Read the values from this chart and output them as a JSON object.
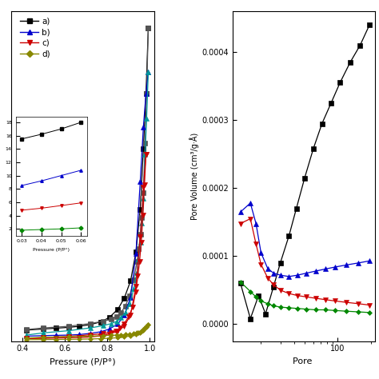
{
  "left_plot": {
    "xlabel": "Pressure (P/P°)",
    "xlim": [
      0.35,
      1.02
    ],
    "xticks": [
      0.4,
      0.6,
      0.8,
      1.0
    ],
    "series": {
      "a_ads": {
        "color": "#000000",
        "marker": "s",
        "markersize": 4,
        "x": [
          0.42,
          0.5,
          0.56,
          0.62,
          0.67,
          0.72,
          0.77,
          0.81,
          0.85,
          0.88,
          0.91,
          0.935,
          0.955,
          0.97,
          0.982,
          0.993
        ],
        "y": [
          20,
          22,
          23.5,
          25,
          27,
          30,
          35,
          43,
          58,
          78,
          110,
          162,
          240,
          350,
          450,
          570
        ]
      },
      "a_des": {
        "color": "#555555",
        "marker": "s",
        "markersize": 4,
        "x": [
          0.993,
          0.985,
          0.978,
          0.97,
          0.963,
          0.956,
          0.948,
          0.94,
          0.925,
          0.905,
          0.885,
          0.865,
          0.845,
          0.82,
          0.78,
          0.72,
          0.62,
          0.5,
          0.42
        ],
        "y": [
          570,
          450,
          360,
          270,
          225,
          195,
          168,
          145,
          112,
          82,
          64,
          52,
          45,
          40,
          36,
          32,
          27,
          24,
          21
        ]
      },
      "b_ads": {
        "color": "#0000cc",
        "marker": "^",
        "markersize": 4,
        "x": [
          0.42,
          0.5,
          0.56,
          0.62,
          0.67,
          0.72,
          0.77,
          0.81,
          0.85,
          0.88,
          0.91,
          0.935,
          0.955,
          0.97,
          0.982,
          0.993
        ],
        "y": [
          9,
          10,
          10.5,
          11,
          12,
          14,
          17,
          22,
          31,
          47,
          80,
          160,
          290,
          390,
          450,
          490
        ]
      },
      "b_des": {
        "color": "#009999",
        "marker": "^",
        "markersize": 4,
        "x": [
          0.993,
          0.985,
          0.978,
          0.97,
          0.963,
          0.956,
          0.948,
          0.94,
          0.925,
          0.905,
          0.885,
          0.865,
          0.845,
          0.82,
          0.78,
          0.72,
          0.62,
          0.5,
          0.42
        ],
        "y": [
          490,
          405,
          340,
          260,
          215,
          180,
          150,
          125,
          95,
          68,
          52,
          43,
          36,
          32,
          28,
          24,
          19,
          15,
          11
        ]
      },
      "c_ads": {
        "color": "#cc0000",
        "marker": "v",
        "markersize": 4,
        "x": [
          0.42,
          0.5,
          0.56,
          0.62,
          0.67,
          0.72,
          0.77,
          0.81,
          0.85,
          0.88,
          0.91,
          0.935,
          0.955,
          0.97,
          0.982
        ],
        "y": [
          4.5,
          5,
          5.5,
          6,
          6.5,
          7.5,
          9.5,
          13,
          18,
          27,
          48,
          100,
          190,
          280,
          340
        ]
      },
      "c_des": {
        "color": "#cc0000",
        "marker": "v",
        "markersize": 4,
        "x": [
          0.982,
          0.975,
          0.968,
          0.96,
          0.952,
          0.944,
          0.934,
          0.92,
          0.9,
          0.88,
          0.86,
          0.84,
          0.82,
          0.78,
          0.72,
          0.62,
          0.5,
          0.42
        ],
        "y": [
          340,
          285,
          230,
          180,
          145,
          118,
          90,
          62,
          44,
          32,
          24,
          19,
          16,
          13.5,
          11.5,
          8.5,
          6.5,
          5
        ]
      },
      "d_ads": {
        "color": "#888800",
        "marker": "D",
        "markersize": 3,
        "x": [
          0.42,
          0.5,
          0.56,
          0.62,
          0.67,
          0.72,
          0.77,
          0.81,
          0.85,
          0.88,
          0.91,
          0.935,
          0.955,
          0.97,
          0.982,
          0.993
        ],
        "y": [
          2.5,
          2.8,
          3.0,
          3.2,
          3.5,
          3.9,
          4.4,
          5.2,
          6.2,
          7.5,
          9.5,
          12,
          15.5,
          20,
          25,
          30
        ]
      },
      "d_des": {
        "color": "#888800",
        "marker": "D",
        "markersize": 3,
        "x": [
          0.993,
          0.985,
          0.978,
          0.97,
          0.963,
          0.956,
          0.948,
          0.94,
          0.925,
          0.905,
          0.885,
          0.865,
          0.845,
          0.82,
          0.78,
          0.72,
          0.62,
          0.5,
          0.42
        ],
        "y": [
          30,
          27,
          24,
          21,
          19,
          17.5,
          16,
          15,
          13.5,
          12.5,
          12,
          11.5,
          11,
          10.5,
          10,
          9,
          8,
          7,
          5.5
        ]
      }
    },
    "inset_series": {
      "a": {
        "color": "#000000",
        "marker": "s",
        "x": [
          0.03,
          0.04,
          0.05,
          0.06
        ],
        "y": [
          15.5,
          16.2,
          17.0,
          18.0
        ]
      },
      "b": {
        "color": "#0000cc",
        "marker": "^",
        "x": [
          0.03,
          0.04,
          0.05,
          0.06
        ],
        "y": [
          8.5,
          9.2,
          10.0,
          10.8
        ]
      },
      "c": {
        "color": "#cc0000",
        "marker": "v",
        "x": [
          0.03,
          0.04,
          0.05,
          0.06
        ],
        "y": [
          4.8,
          5.1,
          5.5,
          5.9
        ]
      },
      "d": {
        "color": "#008800",
        "marker": "D",
        "x": [
          0.03,
          0.04,
          0.05,
          0.06
        ],
        "y": [
          1.8,
          1.9,
          2.0,
          2.15
        ]
      }
    },
    "legend": {
      "labels": [
        "a)",
        "b)",
        "c)",
        "d)"
      ],
      "line_colors": [
        "#000000",
        "#0000cc",
        "#cc0000",
        "#888800"
      ],
      "des_colors": [
        "#555555",
        "#009999",
        "#cc0000",
        "#888800"
      ],
      "markers": [
        "s",
        "^",
        "v",
        "D"
      ]
    }
  },
  "right_plot": {
    "xlabel": "Pore ",
    "ylabel": "Pore Volume (cm³/g·Å)",
    "yticks": [
      0.0,
      0.0001,
      0.0002,
      0.0003,
      0.0004
    ],
    "ylim": [
      -2.5e-05,
      0.00046
    ],
    "series": {
      "a": {
        "color": "#000000",
        "marker": "s",
        "markersize": 4,
        "x": [
          13,
          16,
          19,
          22,
          26,
          30,
          36,
          42,
          50,
          60,
          72,
          87,
          105,
          130,
          160,
          195
        ],
        "y": [
          6e-05,
          8e-06,
          4.2e-05,
          1.5e-05,
          5.5e-05,
          9e-05,
          0.00013,
          0.00017,
          0.000215,
          0.000258,
          0.000295,
          0.000325,
          0.000355,
          0.000385,
          0.00041,
          0.00044
        ]
      },
      "b": {
        "color": "#0000cc",
        "marker": "^",
        "markersize": 4,
        "x": [
          13,
          16,
          18,
          20,
          23,
          26,
          30,
          36,
          43,
          52,
          63,
          77,
          95,
          120,
          155,
          195
        ],
        "y": [
          0.000165,
          0.000178,
          0.000148,
          0.000105,
          8.2e-05,
          7.5e-05,
          7.2e-05,
          7e-05,
          7.2e-05,
          7.5e-05,
          7.8e-05,
          8.1e-05,
          8.4e-05,
          8.7e-05,
          9e-05,
          9.3e-05
        ]
      },
      "c": {
        "color": "#cc0000",
        "marker": "v",
        "markersize": 4,
        "x": [
          13,
          16,
          18,
          20,
          23,
          26,
          30,
          36,
          43,
          52,
          63,
          77,
          95,
          120,
          155,
          195
        ],
        "y": [
          0.000148,
          0.000155,
          0.000118,
          8.8e-05,
          6.8e-05,
          5.8e-05,
          5e-05,
          4.5e-05,
          4.2e-05,
          4e-05,
          3.8e-05,
          3.6e-05,
          3.4e-05,
          3.2e-05,
          3e-05,
          2.8e-05
        ]
      },
      "d": {
        "color": "#008800",
        "marker": "D",
        "markersize": 3,
        "x": [
          13,
          16,
          18,
          20,
          23,
          26,
          30,
          36,
          43,
          52,
          63,
          77,
          95,
          120,
          155,
          195
        ],
        "y": [
          6.2e-05,
          4.8e-05,
          4e-05,
          3.4e-05,
          3e-05,
          2.7e-05,
          2.5e-05,
          2.4e-05,
          2.3e-05,
          2.2e-05,
          2.1e-05,
          2.1e-05,
          2e-05,
          1.9e-05,
          1.8e-05,
          1.7e-05
        ]
      }
    }
  }
}
